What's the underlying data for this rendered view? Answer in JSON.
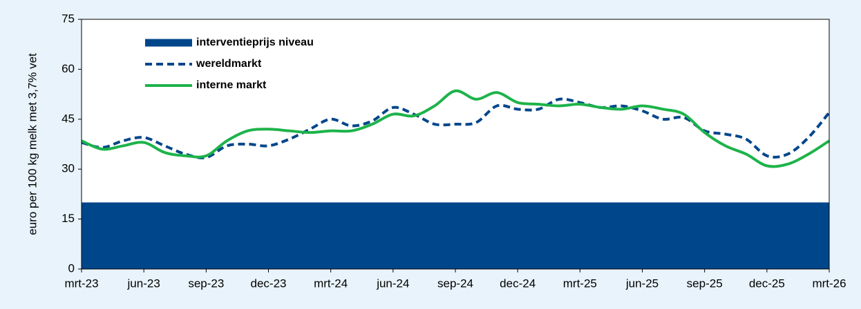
{
  "chart_data": {
    "type": "line",
    "y_label": "euro per 100 kg melk met 3,7% vet",
    "categories": [
      "mrt-23",
      null,
      null,
      "jun-23",
      null,
      null,
      "sep-23",
      null,
      null,
      "dec-23",
      null,
      null,
      "mrt-24",
      null,
      null,
      "jun-24",
      null,
      null,
      "sep-24",
      null,
      null,
      "dec-24",
      null,
      null,
      "mrt-25",
      null,
      null,
      "jun-25",
      null,
      null,
      "sep-25",
      null,
      null,
      "dec-25",
      null,
      null,
      "mrt-26"
    ],
    "series": [
      {
        "name": "interventieprijs niveau",
        "color": "#00468b",
        "style": "area",
        "values": [
          20,
          20,
          20,
          20,
          20,
          20,
          20,
          20,
          20,
          20,
          20,
          20,
          20,
          20,
          20,
          20,
          20,
          20,
          20,
          20,
          20,
          20,
          20,
          20,
          20,
          20,
          20,
          20,
          20,
          20,
          20,
          20,
          20,
          20,
          20,
          20,
          20
        ]
      },
      {
        "name": "wereldmarkt",
        "color": "#00468b",
        "style": "dashed",
        "values": [
          38,
          36.5,
          38.5,
          39.5,
          37,
          34.5,
          33.5,
          37,
          37.5,
          37,
          39,
          42,
          45,
          43,
          44.5,
          48.5,
          46.5,
          43.5,
          43.5,
          44,
          49,
          48,
          48,
          51,
          50,
          48.5,
          49,
          47.5,
          45,
          45.5,
          41.5,
          40.5,
          39,
          34,
          34.5,
          39.5,
          47
        ]
      },
      {
        "name": "interne markt",
        "color": "#1db34a",
        "style": "solid",
        "values": [
          38.5,
          36,
          37,
          38,
          35,
          34,
          34,
          38.5,
          41.5,
          42,
          41.5,
          41,
          41.5,
          41.5,
          43.5,
          46.5,
          46,
          49,
          53.5,
          51,
          53,
          50,
          49.5,
          49,
          49.5,
          48.5,
          48,
          49,
          48,
          46.5,
          41,
          37,
          34.5,
          31,
          31.5,
          34.5,
          38.5
        ]
      }
    ],
    "ylim": [
      0,
      75
    ],
    "yticks": [
      0,
      15,
      30,
      45,
      60,
      75
    ],
    "legend": "upper left"
  }
}
